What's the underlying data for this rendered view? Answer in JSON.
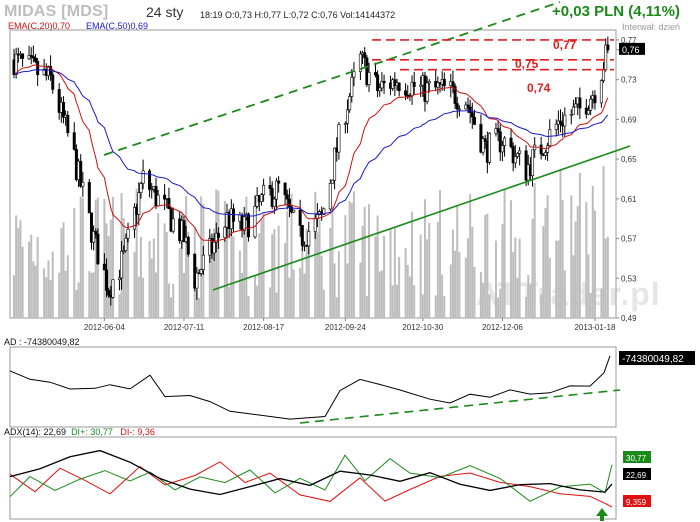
{
  "header": {
    "symbol": "MIDAS [MDS]",
    "interval": "24 sty",
    "ohlc": "18:19  O:0,73  H:0,77  L:0,72  C:0,76  Vol:14144372",
    "change": "+0,03 PLN (4,11%)",
    "interval_note": "Interwał: dzień",
    "ema20_label": "EMA(C,20)0,70",
    "ema50_label": "EMA(C,50)0,69",
    "watermark": "ATTrader.pl"
  },
  "colors": {
    "up_text": "#1a8a1a",
    "ema20": "#d01010",
    "ema50": "#1a1ad0",
    "trend": "#1a8a1a",
    "resistance": "#e02020",
    "di_plus": "#1a8a1a",
    "di_minus": "#e01010",
    "adx": "#000000",
    "volume": "#bdbdbd"
  },
  "price_axis": {
    "ticks": [
      "0,77",
      "0,76",
      "0,73",
      "0,69",
      "0,65",
      "0,61",
      "0,57",
      "0,53",
      "0,49"
    ],
    "last_price": "0,76"
  },
  "date_axis": [
    "2012-06-04",
    "2012-07-11",
    "2012-08-17",
    "2012-09-24",
    "2012-10-30",
    "2012-12-06",
    "2013-01-18"
  ],
  "levels": [
    {
      "label": "0,77",
      "value": 0.77
    },
    {
      "label": "0,75",
      "value": 0.75
    },
    {
      "label": "0,74",
      "value": 0.74
    }
  ],
  "ad_panel": {
    "label": "AD : -74380049,82",
    "last_value": "-74380049,82"
  },
  "adx_panel": {
    "label_adx": "ADX(14): 22,69",
    "label_diplus": "DI+: 30,77",
    "label_diminus": "DI-: 9,36",
    "box_diplus": "30,77",
    "box_adx": "22,69",
    "box_diminus": "9,359"
  },
  "chart_data": [
    {
      "type": "candlestick",
      "title": "MIDAS [MDS]",
      "ylim": [
        0.49,
        0.78
      ],
      "x_ticks": [
        "2012-06-04",
        "2012-07-11",
        "2012-08-17",
        "2012-09-24",
        "2012-10-30",
        "2012-12-06",
        "2013-01-18"
      ],
      "close_path": [
        {
          "date": "2012-04-23",
          "close": 0.75
        },
        {
          "date": "2012-05-10",
          "close": 0.73
        },
        {
          "date": "2012-05-20",
          "close": 0.66
        },
        {
          "date": "2012-05-30",
          "close": 0.57
        },
        {
          "date": "2012-06-06",
          "close": 0.52
        },
        {
          "date": "2012-06-13",
          "close": 0.55
        },
        {
          "date": "2012-06-22",
          "close": 0.63
        },
        {
          "date": "2012-07-02",
          "close": 0.6
        },
        {
          "date": "2012-07-11",
          "close": 0.57
        },
        {
          "date": "2012-07-16",
          "close": 0.53
        },
        {
          "date": "2012-07-24",
          "close": 0.56
        },
        {
          "date": "2012-07-31",
          "close": 0.59
        },
        {
          "date": "2012-08-08",
          "close": 0.58
        },
        {
          "date": "2012-08-17",
          "close": 0.61
        },
        {
          "date": "2012-08-24",
          "close": 0.62
        },
        {
          "date": "2012-09-03",
          "close": 0.57
        },
        {
          "date": "2012-09-13",
          "close": 0.59
        },
        {
          "date": "2012-09-24",
          "close": 0.7
        },
        {
          "date": "2012-10-01",
          "close": 0.75
        },
        {
          "date": "2012-10-09",
          "close": 0.72
        },
        {
          "date": "2012-10-18",
          "close": 0.73
        },
        {
          "date": "2012-10-30",
          "close": 0.72
        },
        {
          "date": "2012-11-09",
          "close": 0.72
        },
        {
          "date": "2012-11-19",
          "close": 0.71
        },
        {
          "date": "2012-11-28",
          "close": 0.66
        },
        {
          "date": "2012-12-06",
          "close": 0.67
        },
        {
          "date": "2012-12-17",
          "close": 0.64
        },
        {
          "date": "2013-01-02",
          "close": 0.69
        },
        {
          "date": "2013-01-11",
          "close": 0.7
        },
        {
          "date": "2013-01-18",
          "close": 0.72
        },
        {
          "date": "2013-01-24",
          "close": 0.76
        }
      ],
      "series": [
        {
          "name": "EMA(C,20)",
          "last": 0.7
        },
        {
          "name": "EMA(C,50)",
          "last": 0.69
        }
      ],
      "horizontal_levels": [
        0.77,
        0.75,
        0.74
      ]
    },
    {
      "type": "line",
      "title": "AD",
      "last": -74380049.82
    },
    {
      "type": "line",
      "title": "ADX(14)",
      "series": [
        {
          "name": "ADX(14)",
          "last": 22.69
        },
        {
          "name": "DI+",
          "last": 30.77
        },
        {
          "name": "DI-",
          "last": 9.36
        }
      ]
    }
  ]
}
